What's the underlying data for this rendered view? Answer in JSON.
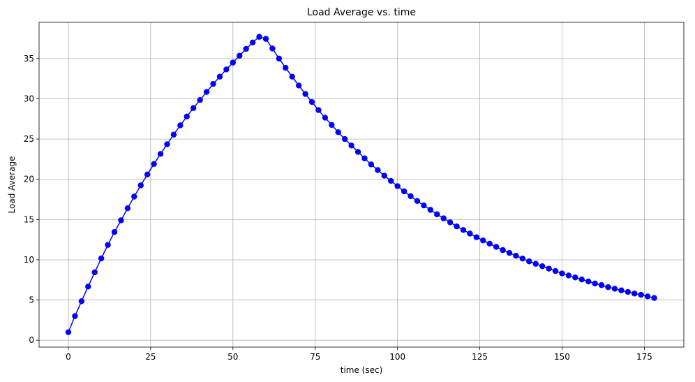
{
  "chart_data": {
    "type": "line",
    "title": "Load Average vs. time",
    "xlabel": "time (sec)",
    "ylabel": "Load Average",
    "xlim": [
      -8.9,
      187.0
    ],
    "ylim": [
      -0.85,
      39.5
    ],
    "xticks": [
      0,
      25,
      50,
      75,
      100,
      125,
      150,
      175
    ],
    "yticks": [
      0,
      5,
      10,
      15,
      20,
      25,
      30,
      35
    ],
    "grid": true,
    "legend": "none",
    "line_color": "#0000ff",
    "marker": "circle",
    "series": [
      {
        "x": [
          0,
          2,
          4,
          6,
          8,
          10,
          12,
          14,
          16,
          18,
          20,
          22,
          24,
          26,
          28,
          30,
          32,
          34,
          36,
          38,
          40,
          42,
          44,
          46,
          48,
          50,
          52,
          54,
          56,
          58,
          60,
          62,
          64,
          66,
          68,
          70,
          72,
          74,
          76,
          78,
          80,
          82,
          84,
          86,
          88,
          90,
          92,
          94,
          96,
          98,
          100,
          102,
          104,
          106,
          108,
          110,
          112,
          114,
          116,
          118,
          120,
          122,
          124,
          126,
          128,
          130,
          132,
          134,
          136,
          138,
          140,
          142,
          144,
          146,
          148,
          150,
          152,
          154,
          156,
          158,
          160,
          162,
          164,
          166,
          168,
          170,
          172,
          174,
          176,
          178
        ],
        "values": [
          1.0,
          3.0,
          4.85,
          6.67,
          8.44,
          10.17,
          11.85,
          13.45,
          14.9,
          16.4,
          17.85,
          19.25,
          20.6,
          21.9,
          23.15,
          24.35,
          25.55,
          26.7,
          27.8,
          28.85,
          29.85,
          30.85,
          31.85,
          32.75,
          33.65,
          34.5,
          35.35,
          36.2,
          37.0,
          37.7,
          37.45,
          36.25,
          35.0,
          33.85,
          32.75,
          31.65,
          30.6,
          29.6,
          28.6,
          27.65,
          26.75,
          25.85,
          25.0,
          24.2,
          23.4,
          22.6,
          21.85,
          21.15,
          20.45,
          19.8,
          19.15,
          18.5,
          17.9,
          17.3,
          16.75,
          16.2,
          15.65,
          15.15,
          14.65,
          14.15,
          13.7,
          13.25,
          12.8,
          12.4,
          12.0,
          11.6,
          11.2,
          10.85,
          10.5,
          10.15,
          9.8,
          9.5,
          9.2,
          8.9,
          8.6,
          8.3,
          8.05,
          7.8,
          7.55,
          7.3,
          7.05,
          6.85,
          6.6,
          6.4,
          6.2,
          6.0,
          5.8,
          5.65,
          5.45,
          5.25
        ]
      }
    ]
  }
}
